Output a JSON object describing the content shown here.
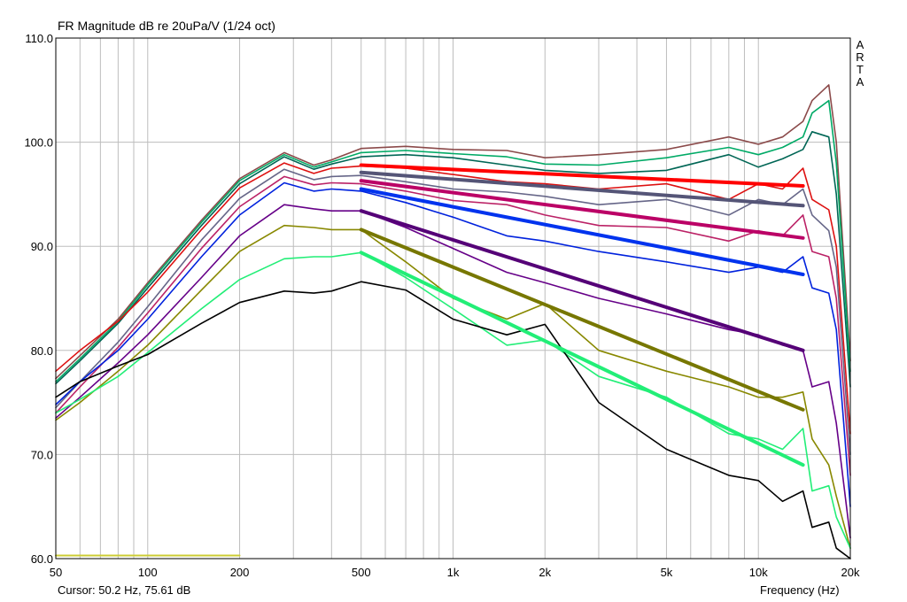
{
  "chart_data": {
    "type": "line",
    "title": "FR Magnitude dB re 20uPa/V (1/24 oct)",
    "xlabel": "Frequency (Hz)",
    "ylabel": "",
    "xscale": "log",
    "xlim": [
      50,
      20000
    ],
    "ylim": [
      60,
      110
    ],
    "grid": true,
    "x_ticks": [
      50,
      100,
      200,
      500,
      1000,
      2000,
      5000,
      10000,
      20000
    ],
    "x_tick_labels": [
      "50",
      "100",
      "200",
      "500",
      "1k",
      "2k",
      "5k",
      "10k",
      "20k"
    ],
    "y_ticks": [
      60,
      70,
      80,
      90,
      100,
      110
    ],
    "y_tick_labels": [
      "60.0",
      "70.0",
      "80.0",
      "90.0",
      "100.0",
      "110.0"
    ],
    "brand_letters": [
      "A",
      "R",
      "T",
      "A"
    ],
    "cursor_text": "Cursor: 50.2 Hz, 75.61 dB",
    "series": [
      {
        "color": "#8B4A4A",
        "x": [
          50,
          60,
          80,
          100,
          150,
          200,
          280,
          350,
          400,
          500,
          700,
          1000,
          1500,
          2000,
          3000,
          5000,
          8000,
          10000,
          12000,
          14000,
          15000,
          17000,
          18000,
          20000
        ],
        "y": [
          77.3,
          79.5,
          83.0,
          86.5,
          92.5,
          96.5,
          99.0,
          97.8,
          98.3,
          99.4,
          99.6,
          99.3,
          99.2,
          98.5,
          98.8,
          99.3,
          100.5,
          99.8,
          100.5,
          102.0,
          104.0,
          105.5,
          100.0,
          79.0
        ]
      },
      {
        "color": "#00AA66",
        "x": [
          50,
          60,
          80,
          100,
          150,
          200,
          280,
          350,
          400,
          500,
          700,
          1000,
          1500,
          2000,
          3000,
          5000,
          8000,
          10000,
          12000,
          14000,
          15000,
          17000,
          18000,
          20000
        ],
        "y": [
          77.0,
          79.2,
          82.8,
          86.3,
          92.3,
          96.3,
          98.8,
          97.6,
          98.1,
          99.0,
          99.2,
          98.9,
          98.6,
          97.9,
          97.8,
          98.5,
          99.5,
          98.8,
          99.5,
          100.5,
          102.8,
          104.0,
          98.0,
          78.0
        ]
      },
      {
        "color": "#006655",
        "x": [
          50,
          60,
          80,
          100,
          150,
          200,
          280,
          350,
          400,
          500,
          700,
          1000,
          1500,
          2000,
          3000,
          5000,
          8000,
          10000,
          12000,
          14000,
          15000,
          17000,
          18000,
          20000
        ],
        "y": [
          76.8,
          79.0,
          82.6,
          86.0,
          92.0,
          96.0,
          98.6,
          97.4,
          97.9,
          98.6,
          98.8,
          98.5,
          97.8,
          97.3,
          97.0,
          97.3,
          98.8,
          97.6,
          98.4,
          99.3,
          101.0,
          100.5,
          95.0,
          76.5
        ]
      },
      {
        "color": "#DD1111",
        "x": [
          50,
          60,
          80,
          100,
          150,
          200,
          280,
          350,
          400,
          500,
          700,
          1000,
          1500,
          2000,
          3000,
          5000,
          8000,
          10000,
          12000,
          14000,
          15000,
          17000,
          18000,
          20000
        ],
        "y": [
          78.0,
          80.0,
          82.8,
          85.6,
          91.6,
          95.6,
          98.0,
          97.0,
          97.5,
          97.7,
          97.5,
          96.9,
          96.2,
          96.0,
          95.5,
          96.0,
          94.5,
          96.0,
          95.5,
          97.5,
          94.5,
          93.5,
          90.0,
          72.0
        ]
      },
      {
        "color": "#666688",
        "x": [
          50,
          60,
          80,
          100,
          150,
          200,
          280,
          350,
          400,
          500,
          700,
          1000,
          1500,
          2000,
          3000,
          5000,
          8000,
          10000,
          12000,
          14000,
          15000,
          17000,
          18000,
          20000
        ],
        "y": [
          74.5,
          77.0,
          80.8,
          84.2,
          90.6,
          94.6,
          97.4,
          96.4,
          96.7,
          96.8,
          96.2,
          95.5,
          95.2,
          94.8,
          94.0,
          94.5,
          93.0,
          94.5,
          94.0,
          95.5,
          93.0,
          91.5,
          88.0,
          70.0
        ]
      },
      {
        "color": "#BB2266",
        "x": [
          50,
          60,
          80,
          100,
          150,
          200,
          280,
          350,
          400,
          500,
          700,
          1000,
          1500,
          2000,
          3000,
          5000,
          8000,
          10000,
          12000,
          14000,
          15000,
          17000,
          18000,
          20000
        ],
        "y": [
          74.0,
          76.5,
          80.3,
          83.6,
          89.8,
          93.8,
          96.7,
          95.9,
          96.1,
          96.0,
          95.3,
          94.4,
          94.0,
          93.0,
          92.0,
          91.8,
          90.5,
          91.5,
          91.0,
          93.0,
          89.5,
          89.0,
          85.0,
          68.0
        ]
      },
      {
        "color": "#0022DD",
        "x": [
          50,
          60,
          80,
          100,
          150,
          200,
          280,
          350,
          400,
          500,
          700,
          1000,
          1500,
          2000,
          3000,
          5000,
          8000,
          10000,
          12000,
          14000,
          15000,
          17000,
          18000,
          20000
        ],
        "y": [
          74.8,
          77.0,
          80.0,
          83.0,
          89.0,
          93.0,
          96.1,
          95.3,
          95.5,
          95.3,
          94.2,
          92.8,
          91.0,
          90.5,
          89.5,
          88.5,
          87.5,
          88.0,
          87.5,
          89.0,
          86.0,
          85.5,
          82.0,
          65.0
        ]
      },
      {
        "color": "#660088",
        "x": [
          50,
          60,
          80,
          100,
          150,
          200,
          280,
          350,
          400,
          500,
          700,
          1000,
          1500,
          2000,
          3000,
          5000,
          8000,
          10000,
          12000,
          14000,
          15000,
          17000,
          18000,
          20000
        ],
        "y": [
          73.5,
          75.5,
          78.8,
          81.5,
          87.0,
          91.0,
          94.0,
          93.6,
          93.4,
          93.4,
          91.8,
          89.8,
          87.5,
          86.5,
          85.0,
          83.5,
          82.0,
          81.5,
          80.5,
          80.0,
          76.5,
          77.0,
          73.0,
          62.0
        ]
      },
      {
        "color": "#888800",
        "x": [
          50,
          60,
          80,
          100,
          150,
          200,
          280,
          350,
          400,
          500,
          700,
          1000,
          1500,
          2000,
          3000,
          5000,
          8000,
          10000,
          12000,
          14000,
          15000,
          17000,
          18000,
          20000
        ],
        "y": [
          73.3,
          75.0,
          78.0,
          80.5,
          85.8,
          89.5,
          92.0,
          91.8,
          91.6,
          91.6,
          88.5,
          85.0,
          83.0,
          84.5,
          80.0,
          78.0,
          76.5,
          75.5,
          75.5,
          76.0,
          71.5,
          69.0,
          66.0,
          61.0
        ]
      },
      {
        "color": "#22EE77",
        "x": [
          50,
          60,
          80,
          100,
          150,
          200,
          280,
          350,
          400,
          500,
          700,
          1000,
          1500,
          2000,
          3000,
          5000,
          8000,
          10000,
          12000,
          14000,
          15000,
          17000,
          18000,
          20000
        ],
        "y": [
          74.0,
          75.3,
          77.5,
          79.8,
          84.0,
          86.8,
          88.8,
          89.0,
          89.0,
          89.4,
          87.0,
          84.0,
          80.5,
          81.0,
          77.5,
          75.5,
          72.0,
          71.5,
          70.5,
          72.5,
          66.5,
          67.0,
          64.0,
          61.0
        ]
      },
      {
        "color": "#000000",
        "x": [
          50,
          60,
          80,
          100,
          150,
          200,
          280,
          350,
          400,
          500,
          700,
          1000,
          1500,
          2000,
          3000,
          5000,
          8000,
          10000,
          12000,
          14000,
          15000,
          17000,
          18000,
          20000
        ],
        "y": [
          75.5,
          77.0,
          78.5,
          79.6,
          82.6,
          84.6,
          85.7,
          85.5,
          85.7,
          86.6,
          85.8,
          83.0,
          81.5,
          82.5,
          75.0,
          70.5,
          68.0,
          67.5,
          65.5,
          66.5,
          63.0,
          63.5,
          61.0,
          60.0
        ]
      },
      {
        "color": "#FF0000",
        "width": 4,
        "x": [
          500,
          14000
        ],
        "y": [
          97.8,
          95.8
        ]
      },
      {
        "color": "#555577",
        "width": 4,
        "x": [
          500,
          14000
        ],
        "y": [
          97.1,
          93.9
        ]
      },
      {
        "color": "#BB0066",
        "width": 4,
        "x": [
          500,
          14000
        ],
        "y": [
          96.3,
          90.8
        ]
      },
      {
        "color": "#0033EE",
        "width": 4,
        "x": [
          500,
          14000
        ],
        "y": [
          95.5,
          87.3
        ]
      },
      {
        "color": "#550077",
        "width": 4,
        "x": [
          500,
          14000
        ],
        "y": [
          93.4,
          80.0
        ]
      },
      {
        "color": "#777700",
        "width": 4,
        "x": [
          500,
          14000
        ],
        "y": [
          91.6,
          74.3
        ]
      },
      {
        "color": "#22EE77",
        "width": 4,
        "x": [
          500,
          14000
        ],
        "y": [
          89.4,
          69.0
        ]
      },
      {
        "color": "#CCCC33",
        "width": 2,
        "x": [
          50,
          200
        ],
        "y": [
          60.3,
          60.3
        ]
      }
    ]
  }
}
